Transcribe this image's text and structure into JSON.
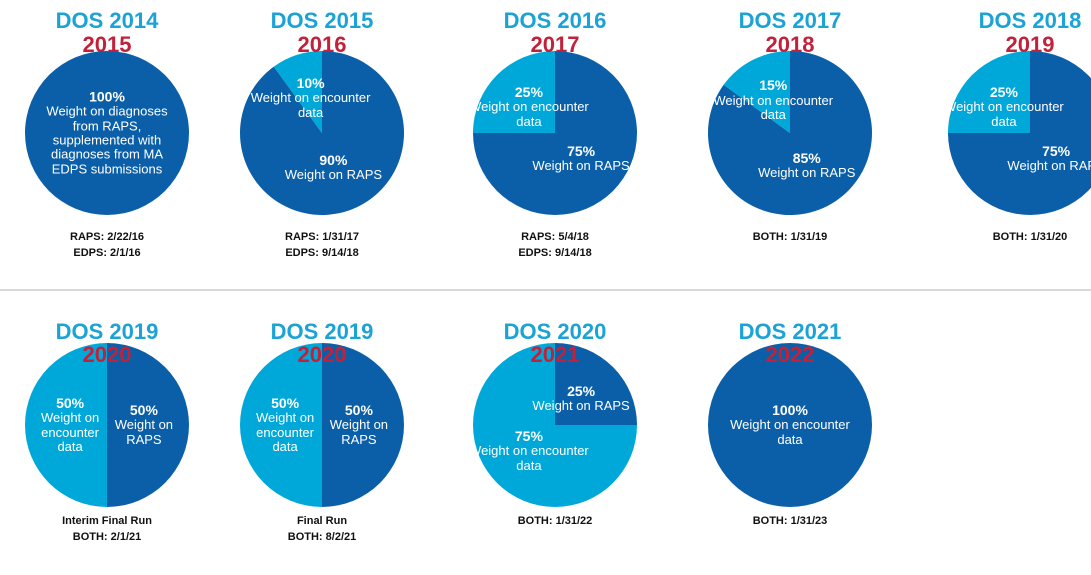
{
  "chart_data": [
    {
      "type": "pie",
      "title": "DOS 2014",
      "subtitle": "2015",
      "categories": [
        "Weight on diagnoses from RAPS, supplemented with diagnoses from MA EDPS submissions"
      ],
      "values": [
        100
      ],
      "value_labels": [
        "100%"
      ],
      "colors": [
        "#0b5fa8"
      ],
      "annotations": [
        "RAPS: 2/22/16",
        "EDPS: 2/1/16"
      ]
    },
    {
      "type": "pie",
      "title": "DOS 2015",
      "subtitle": "2016",
      "categories": [
        "Weight on RAPS",
        "Weight on encounter data"
      ],
      "values": [
        90,
        10
      ],
      "value_labels": [
        "90%",
        "10%"
      ],
      "colors": [
        "#0b5fa8",
        "#00a8da"
      ],
      "annotations": [
        "RAPS: 1/31/17",
        "EDPS: 9/14/18"
      ]
    },
    {
      "type": "pie",
      "title": "DOS 2016",
      "subtitle": "2017",
      "categories": [
        "Weight on RAPS",
        "Weight on encounter data"
      ],
      "values": [
        75,
        25
      ],
      "value_labels": [
        "75%",
        "25%"
      ],
      "colors": [
        "#0b5fa8",
        "#00a8da"
      ],
      "annotations": [
        "RAPS: 5/4/18",
        "EDPS: 9/14/18"
      ]
    },
    {
      "type": "pie",
      "title": "DOS 2017",
      "subtitle": "2018",
      "categories": [
        "Weight on RAPS",
        "Weight on encounter data"
      ],
      "values": [
        85,
        15
      ],
      "value_labels": [
        "85%",
        "15%"
      ],
      "colors": [
        "#0b5fa8",
        "#00a8da"
      ],
      "annotations": [
        "BOTH: 1/31/19"
      ]
    },
    {
      "type": "pie",
      "title": "DOS 2018",
      "subtitle": "2019",
      "categories": [
        "Weight on RAPS",
        "Weight on encounter data"
      ],
      "values": [
        75,
        25
      ],
      "value_labels": [
        "75%",
        "25%"
      ],
      "colors": [
        "#0b5fa8",
        "#00a8da"
      ],
      "annotations": [
        "BOTH: 1/31/20"
      ]
    },
    {
      "type": "pie",
      "title": "DOS 2019",
      "subtitle": "2020",
      "categories": [
        "Weight on RAPS",
        "Weight on encounter data"
      ],
      "values": [
        50,
        50
      ],
      "value_labels": [
        "50%",
        "50%"
      ],
      "colors": [
        "#0b5fa8",
        "#00a8da"
      ],
      "annotations": [
        "Interim Final Run",
        "BOTH: 2/1/21"
      ]
    },
    {
      "type": "pie",
      "title": "DOS 2019",
      "subtitle": "2020",
      "categories": [
        "Weight on RAPS",
        "Weight on encounter data"
      ],
      "values": [
        50,
        50
      ],
      "value_labels": [
        "50%",
        "50%"
      ],
      "colors": [
        "#0b5fa8",
        "#00a8da"
      ],
      "annotations": [
        "Final Run",
        "BOTH: 8/2/21"
      ]
    },
    {
      "type": "pie",
      "title": "DOS 2020",
      "subtitle": "2021",
      "categories": [
        "Weight on RAPS",
        "Weight on encounter data"
      ],
      "values": [
        25,
        75
      ],
      "value_labels": [
        "25%",
        "75%"
      ],
      "colors": [
        "#0b5fa8",
        "#00a8da"
      ],
      "annotations": [
        "BOTH: 1/31/22"
      ]
    },
    {
      "type": "pie",
      "title": "DOS 2021",
      "subtitle": "2022",
      "categories": [
        "Weight on encounter data"
      ],
      "values": [
        100
      ],
      "value_labels": [
        "100%"
      ],
      "colors": [
        "#0b5fa8"
      ],
      "annotations": [
        "BOTH: 1/31/23"
      ]
    }
  ]
}
